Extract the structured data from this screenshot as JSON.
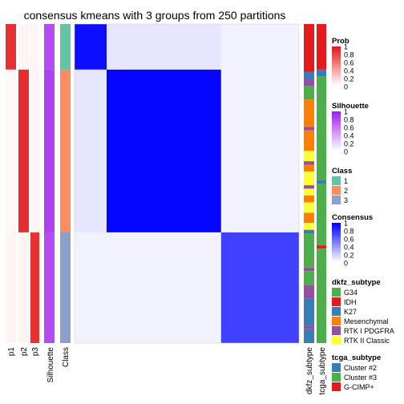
{
  "chart_data": {
    "type": "heatmap",
    "title": "consensus kmeans with 3 groups from 250 partitions",
    "annotation_columns": [
      "p1",
      "p2",
      "p3",
      "Silhouette",
      "Class"
    ],
    "right_annotation_columns": [
      "dkfz_subtype",
      "tcga_subtype"
    ],
    "groups": [
      {
        "class": "1",
        "size": 14,
        "class_color": "#66C2A5",
        "p1": 0.9,
        "p2": 0.05,
        "p3": 0.05,
        "silhouette": 0.8
      },
      {
        "class": "2",
        "size": 50,
        "class_color": "#FC8D62",
        "p1": 0.03,
        "p2": 0.92,
        "p3": 0.05,
        "silhouette": 0.85
      },
      {
        "class": "3",
        "size": 34,
        "class_color": "#8DA0CB",
        "p1": 0.05,
        "p2": 0.05,
        "p3": 0.9,
        "silhouette": 0.8
      }
    ],
    "consensus_blocks": [
      {
        "rows": "1",
        "cols": "1",
        "value": 0.95
      },
      {
        "rows": "1",
        "cols": "2",
        "value": 0.1
      },
      {
        "rows": "1",
        "cols": "3",
        "value": 0.05
      },
      {
        "rows": "2",
        "cols": "2",
        "value": 0.98
      },
      {
        "rows": "2",
        "cols": "3",
        "value": 0.05
      },
      {
        "rows": "3",
        "cols": "3",
        "value": 0.75
      }
    ],
    "legends": [
      {
        "title": "Prob",
        "type": "gradient",
        "low": "#ffffff",
        "high": "#e31a1c",
        "ticks": [
          "1",
          "0.8",
          "0.6",
          "0.4",
          "0.2",
          "0"
        ]
      },
      {
        "title": "Silhouette",
        "type": "gradient",
        "low": "#ffffff",
        "high": "#a020f0",
        "ticks": [
          "1",
          "0.8",
          "0.6",
          "0.4",
          "0.2",
          "0"
        ]
      },
      {
        "title": "Class",
        "type": "discrete",
        "items": [
          {
            "label": "1",
            "color": "#66C2A5"
          },
          {
            "label": "2",
            "color": "#FC8D62"
          },
          {
            "label": "3",
            "color": "#8DA0CB"
          }
        ]
      },
      {
        "title": "Consensus",
        "type": "gradient",
        "low": "#ffffff",
        "high": "#0000ff",
        "ticks": [
          "1",
          "0.8",
          "0.6",
          "0.4",
          "0.2",
          "0"
        ]
      },
      {
        "title": "dkfz_subtype",
        "type": "discrete",
        "items": [
          {
            "label": "G34",
            "color": "#4DAF4A"
          },
          {
            "label": "IDH",
            "color": "#E41A1C"
          },
          {
            "label": "K27",
            "color": "#377EB8"
          },
          {
            "label": "Mesenchymal",
            "color": "#FF7F00"
          },
          {
            "label": "RTK I PDGFRA",
            "color": "#984EA3"
          },
          {
            "label": "RTK II Classic",
            "color": "#FFFF33"
          }
        ]
      },
      {
        "title": "tcga_subtype",
        "type": "discrete",
        "items": [
          {
            "label": "Cluster #2",
            "color": "#377EB8"
          },
          {
            "label": "Cluster #3",
            "color": "#4DAF4A"
          },
          {
            "label": "G-CIMP+",
            "color": "#E41A1C"
          }
        ]
      }
    ]
  }
}
